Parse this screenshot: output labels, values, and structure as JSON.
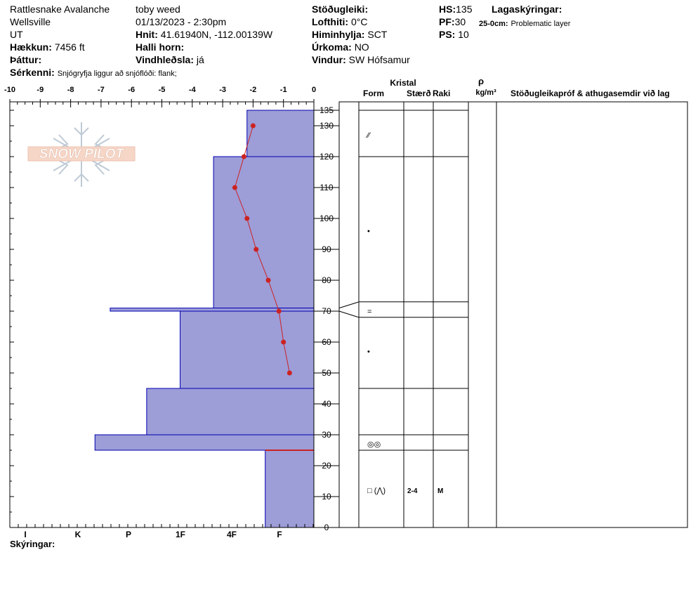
{
  "header": {
    "location": "Rattlesnake Avalanche",
    "area": "Wellsville",
    "state": "UT",
    "elevation_label": "Hækkun:",
    "elevation_value": "7456 ft",
    "aspect_label": "Þáttur:",
    "observer": "toby weed",
    "datetime": "01/13/2023 - 2:30pm",
    "coords_label": "Hnit:",
    "coords_value": "41.61940N, -112.00139W",
    "slope_label": "Halli horn:",
    "wind_loading_label": "Vindhleðsla:",
    "wind_loading_value": "já",
    "stability_label": "Stöðugleiki:",
    "air_temp_label": "Lofthiti:",
    "air_temp_value": "0°C",
    "sky_label": "Himinhylja:",
    "sky_value": "SCT",
    "precip_label": "Úrkoma:",
    "precip_value": "NO",
    "wind_label": "Vindur:",
    "wind_value": "SW Hófsamur",
    "hs_label": "HS:",
    "hs_value": "135",
    "pf_label": "PF:",
    "pf_value": "30",
    "ps_label": "PS:",
    "ps_value": "10",
    "layer_notes_label": "Lagaskýringar:",
    "layer_note_range": "25-0cm:",
    "layer_note_text": "Problematic layer",
    "features_label": "Sérkenni:",
    "features_value": "Snjógryfja liggur að snjóflóði: flank;"
  },
  "logo_text": "SNOW PILOT",
  "columns": {
    "crystal": "Kristal",
    "form": "Form",
    "size": "Stærð",
    "moisture": "Raki",
    "rho": "ρ",
    "density_unit": "kg/m³",
    "tests": "Stöðugleikapróf & athugasemdir við lag"
  },
  "footer": {
    "remarks_label": "Skýringar:"
  },
  "colors": {
    "hardness_fill": "#9d9dd8",
    "hardness_edge": "#0000b0",
    "temp_line": "#cc2222",
    "weak_layer": "#cc2222"
  },
  "chart_data": {
    "type": "snow_profile",
    "temperature_axis": {
      "ticks": [
        "-10",
        "-9",
        "-8",
        "-7",
        "-6",
        "-5",
        "-4",
        "-3",
        "-2",
        "-1",
        "0"
      ],
      "range": [
        -10,
        0
      ]
    },
    "height_axis": {
      "ticks": [
        "0",
        "10",
        "20",
        "30",
        "40",
        "50",
        "60",
        "70",
        "80",
        "90",
        "100",
        "110",
        "120",
        "130",
        "135"
      ],
      "range": [
        0,
        135
      ]
    },
    "hardness_axis": {
      "labels": [
        "I",
        "K",
        "P",
        "1F",
        "4F",
        "F"
      ]
    },
    "temperature_profile": [
      {
        "height": 130,
        "temp": -2.0
      },
      {
        "height": 120,
        "temp": -2.3
      },
      {
        "height": 110,
        "temp": -2.6
      },
      {
        "height": 100,
        "temp": -2.2
      },
      {
        "height": 90,
        "temp": -1.9
      },
      {
        "height": 80,
        "temp": -1.5
      },
      {
        "height": 70,
        "temp": -1.15
      },
      {
        "height": 60,
        "temp": -1.0
      },
      {
        "height": 50,
        "temp": -0.8
      }
    ],
    "layers": [
      {
        "top": 135,
        "bottom": 120,
        "hardness_temp": -2.2
      },
      {
        "top": 120,
        "bottom": 71,
        "hardness_temp": -3.3
      },
      {
        "top": 71,
        "bottom": 70,
        "hardness_temp": -6.7
      },
      {
        "top": 70,
        "bottom": 45,
        "hardness_temp": -4.4
      },
      {
        "top": 45,
        "bottom": 30,
        "hardness_temp": -5.5
      },
      {
        "top": 30,
        "bottom": 25,
        "hardness_temp": -7.2
      },
      {
        "top": 25,
        "bottom": 0,
        "hardness_temp": -1.6
      }
    ],
    "weak_layer_height": 25,
    "layer_boundaries": [
      135,
      120,
      73,
      68,
      45,
      30,
      25
    ],
    "crystal_rows": [
      {
        "height": 127,
        "form": "⁄⁄",
        "size": "",
        "moisture": ""
      },
      {
        "height": 96,
        "form": "•",
        "size": "",
        "moisture": ""
      },
      {
        "height": 70,
        "form": "=",
        "size": "",
        "moisture": ""
      },
      {
        "height": 57,
        "form": "•",
        "size": "",
        "moisture": ""
      },
      {
        "height": 27,
        "form": "◎◎",
        "size": "",
        "moisture": ""
      },
      {
        "height": 12,
        "form": "□ (⋀)",
        "size": "2-4",
        "moisture": "M"
      }
    ]
  }
}
